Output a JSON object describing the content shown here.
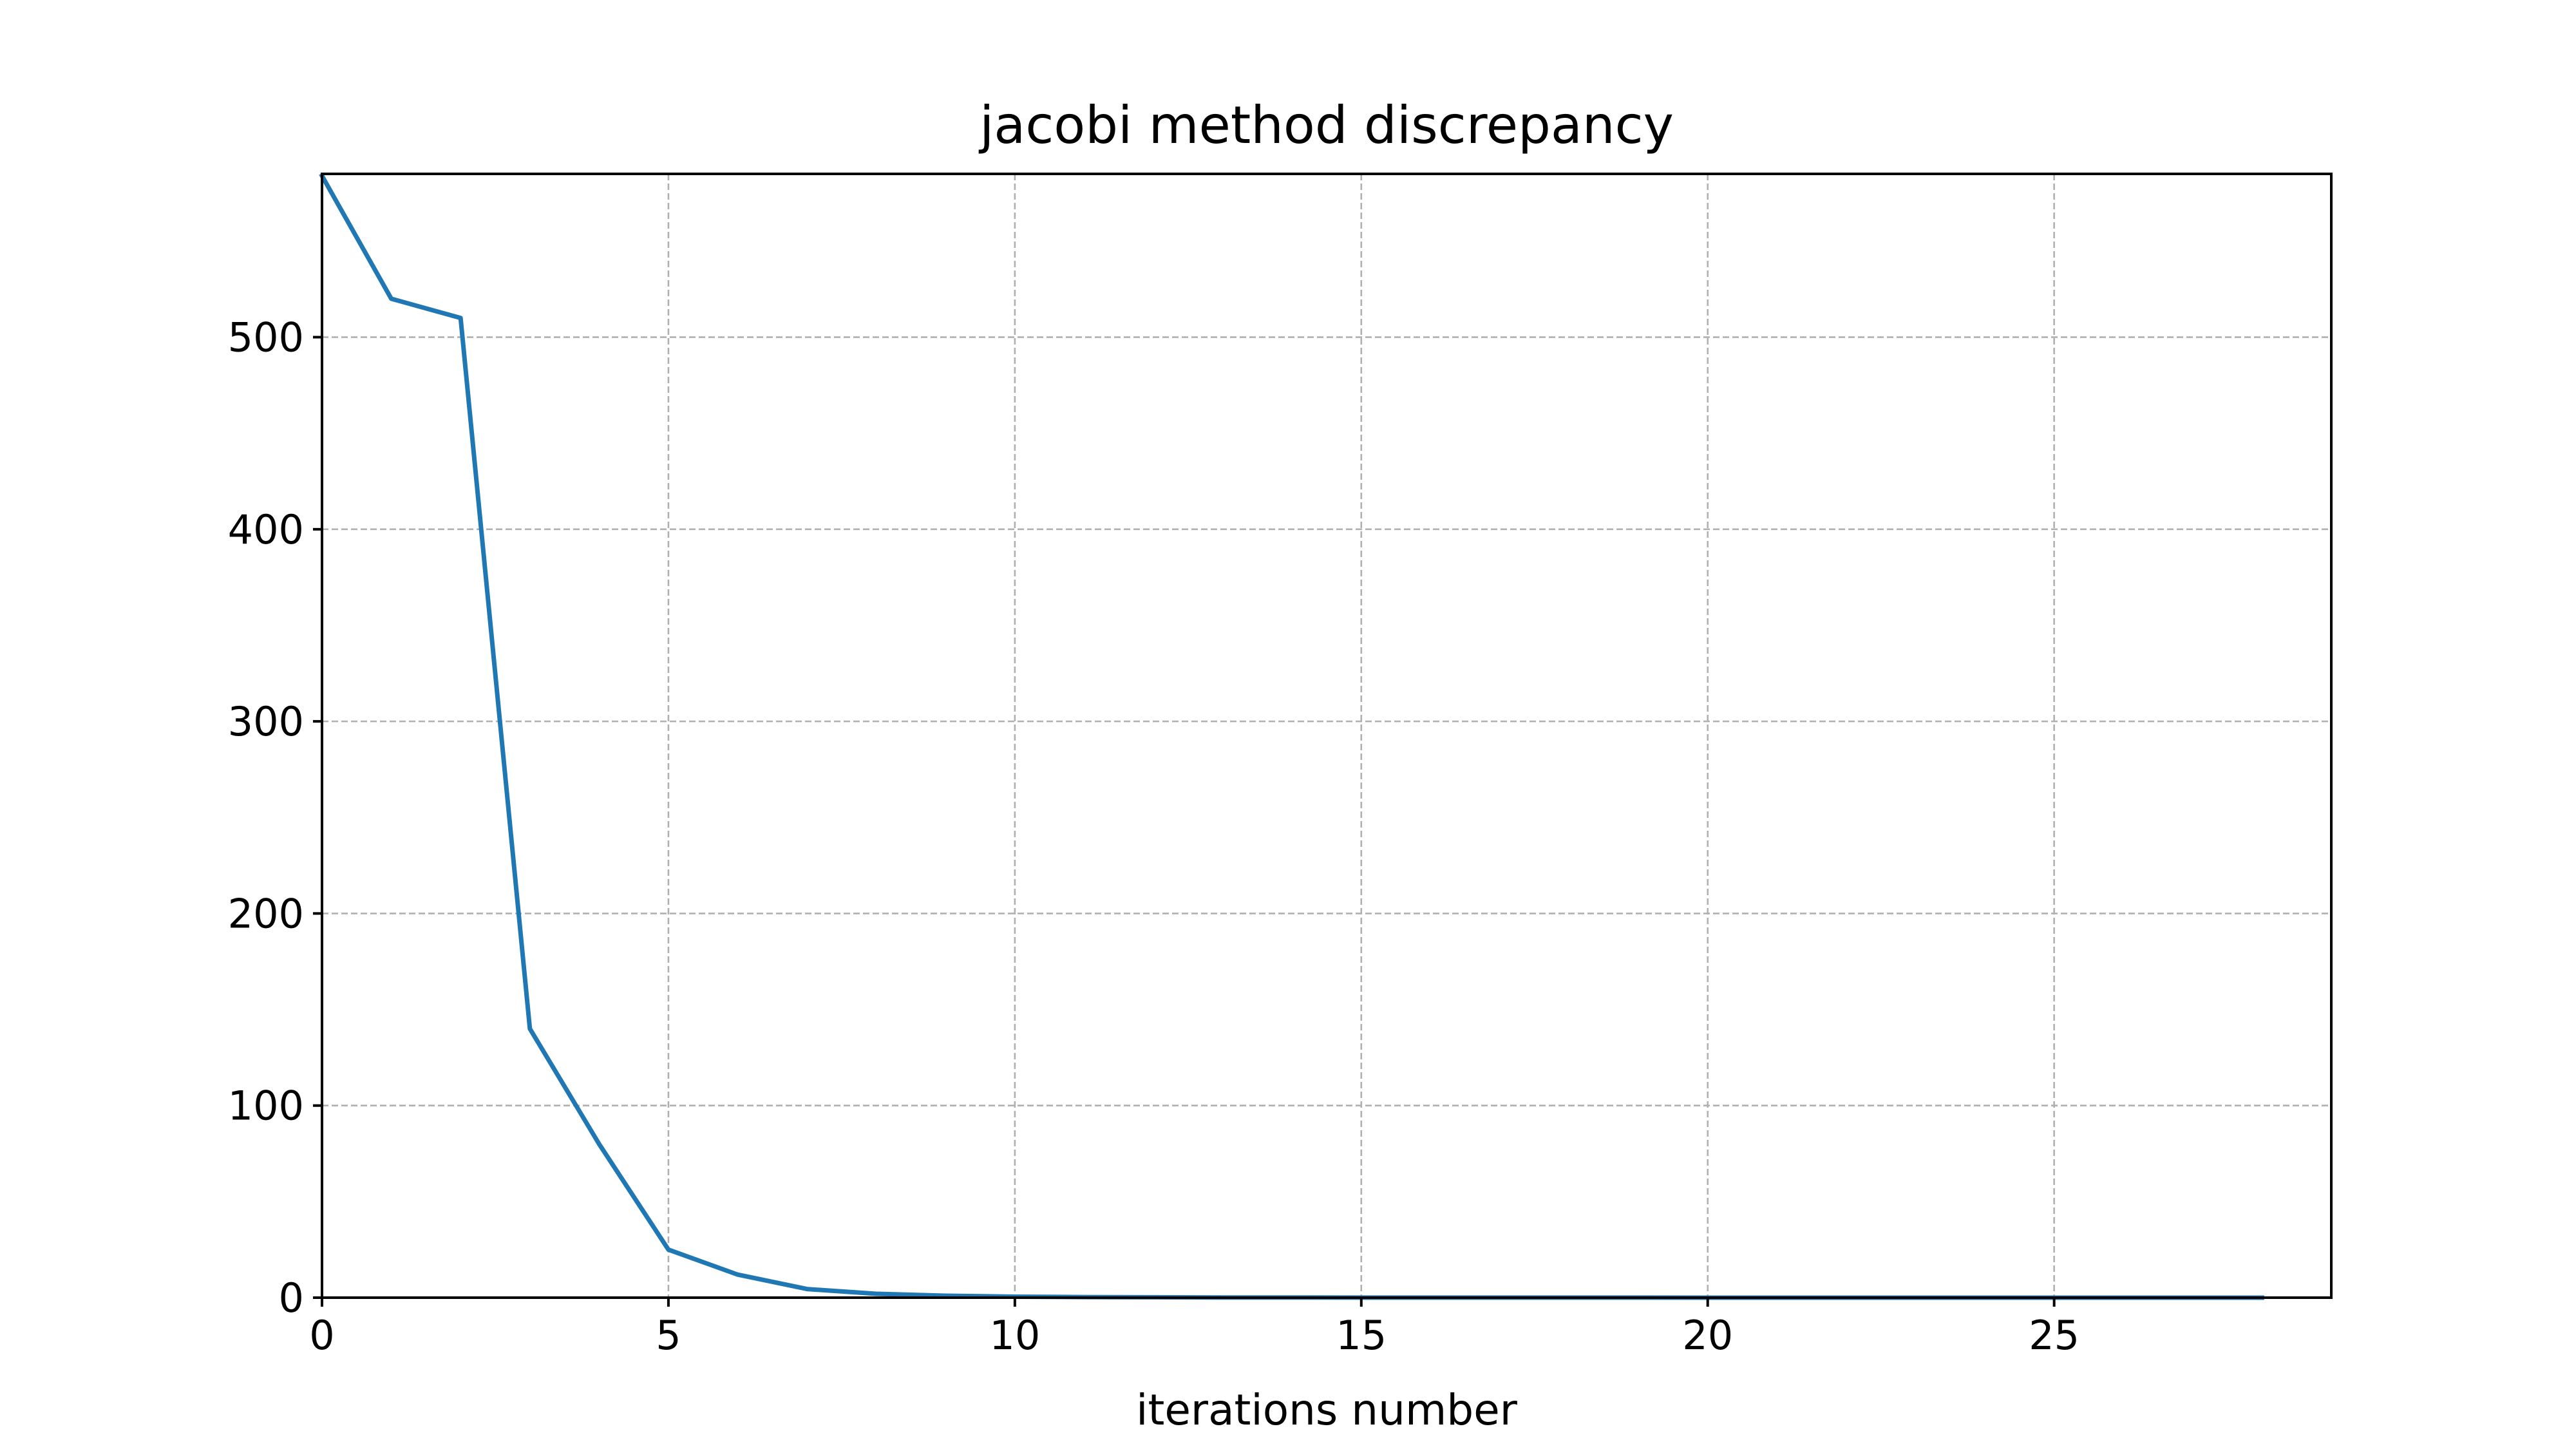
{
  "chart_data": {
    "type": "line",
    "title": "jacobi method discrepancy",
    "xlabel": "iterations number",
    "ylabel": "",
    "xlim": [
      0,
      29
    ],
    "ylim": [
      0,
      585
    ],
    "xticks": [
      0,
      5,
      10,
      15,
      20,
      25
    ],
    "yticks": [
      0,
      100,
      200,
      300,
      400,
      500
    ],
    "grid": true,
    "legend": "none",
    "series": [
      {
        "color": "#1f77b4",
        "x": [
          0,
          1,
          2,
          3,
          4,
          5,
          6,
          7,
          8,
          9,
          10,
          11,
          12,
          13,
          14,
          15,
          16,
          17,
          18,
          19,
          20,
          21,
          22,
          23,
          24,
          25,
          26,
          27,
          28
        ],
        "y": [
          584,
          520,
          510,
          140,
          80,
          25,
          12,
          4.5,
          2,
          1,
          0.5,
          0.3,
          0.2,
          0.1,
          0.1,
          0.05,
          0.05,
          0.03,
          0.02,
          0.02,
          0.01,
          0.01,
          0.01,
          0.01,
          0.01,
          0.01,
          0.01,
          0.01,
          0.01
        ]
      }
    ]
  }
}
